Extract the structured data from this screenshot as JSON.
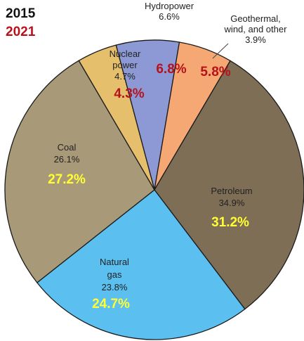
{
  "legend": {
    "year_a": "2015",
    "year_b": "2021",
    "year_a_color": "#111111",
    "year_b_color": "#b5121b"
  },
  "chart_data": {
    "type": "pie",
    "years": [
      "2015",
      "2021"
    ],
    "slices": [
      {
        "name": "Hydropower",
        "label_lines": [
          "Hydropower"
        ],
        "value_2015": "6.6%",
        "value_2021": "6.8%",
        "pct_2015": 6.6,
        "pct_2021": 6.8,
        "color": "#8d99d4",
        "highlight_color": "#b5121b"
      },
      {
        "name": "Geothermal, wind, and other",
        "label_lines": [
          "Geothermal,",
          "wind, and other"
        ],
        "value_2015": "3.9%",
        "value_2021": "5.8%",
        "pct_2015": 3.9,
        "pct_2021": 5.8,
        "color": "#f5a873",
        "highlight_color": "#b5121b"
      },
      {
        "name": "Petroleum",
        "label_lines": [
          "Petroleum"
        ],
        "value_2015": "34.9%",
        "value_2021": "31.2%",
        "pct_2015": 34.9,
        "pct_2021": 31.2,
        "color": "#7e6e55",
        "highlight_color": "#ffff33"
      },
      {
        "name": "Natural gas",
        "label_lines": [
          "Natural",
          "gas"
        ],
        "value_2015": "23.8%",
        "value_2021": "24.7%",
        "pct_2015": 23.8,
        "pct_2021": 24.7,
        "color": "#5bc0f0",
        "highlight_color": "#ffff33"
      },
      {
        "name": "Coal",
        "label_lines": [
          "Coal"
        ],
        "value_2015": "26.1%",
        "value_2021": "27.2%",
        "pct_2015": 26.1,
        "pct_2021": 27.2,
        "color": "#a89a78",
        "highlight_color": "#ffff33"
      },
      {
        "name": "Nuclear power",
        "label_lines": [
          "Nuclear",
          "power"
        ],
        "value_2015": "4.7%",
        "value_2021": "4.3%",
        "pct_2015": 4.7,
        "pct_2021": 4.3,
        "color": "#e6bf6c",
        "highlight_color": "#b5121b"
      }
    ]
  }
}
